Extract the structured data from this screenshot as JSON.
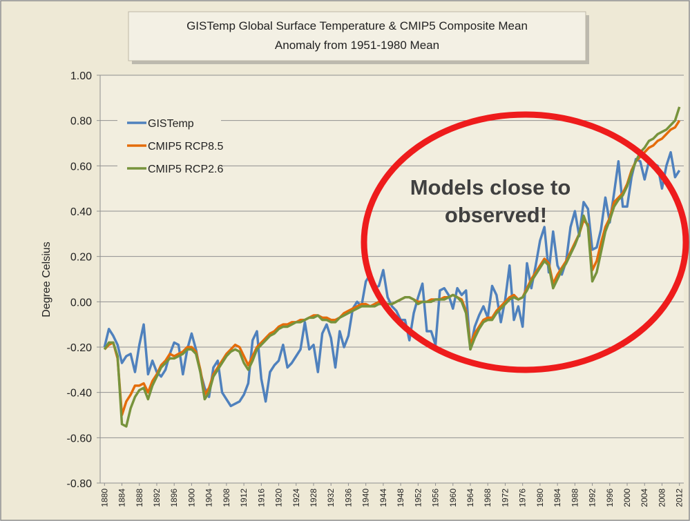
{
  "chart_data": {
    "type": "line",
    "title": [
      "GISTemp Global Surface Temperature & CMIP5 Composite Mean",
      "Anomaly from 1951-1980 Mean"
    ],
    "ylabel": "Degree Celsius",
    "annotation": [
      "Models close to",
      "observed!"
    ],
    "legend": "upper left",
    "grid": true,
    "x": [
      1880,
      1881,
      1882,
      1883,
      1884,
      1885,
      1886,
      1887,
      1888,
      1889,
      1890,
      1891,
      1892,
      1893,
      1894,
      1895,
      1896,
      1897,
      1898,
      1899,
      1900,
      1901,
      1902,
      1903,
      1904,
      1905,
      1906,
      1907,
      1908,
      1909,
      1910,
      1911,
      1912,
      1913,
      1914,
      1915,
      1916,
      1917,
      1918,
      1919,
      1920,
      1921,
      1922,
      1923,
      1924,
      1925,
      1926,
      1927,
      1928,
      1929,
      1930,
      1931,
      1932,
      1933,
      1934,
      1935,
      1936,
      1937,
      1938,
      1939,
      1940,
      1941,
      1942,
      1943,
      1944,
      1945,
      1946,
      1947,
      1948,
      1949,
      1950,
      1951,
      1952,
      1953,
      1954,
      1955,
      1956,
      1957,
      1958,
      1959,
      1960,
      1961,
      1962,
      1963,
      1964,
      1965,
      1966,
      1967,
      1968,
      1969,
      1970,
      1971,
      1972,
      1973,
      1974,
      1975,
      1976,
      1977,
      1978,
      1979,
      1980,
      1981,
      1982,
      1983,
      1984,
      1985,
      1986,
      1987,
      1988,
      1989,
      1990,
      1991,
      1992,
      1993,
      1994,
      1995,
      1996,
      1997,
      1998,
      1999,
      2000,
      2001,
      2002,
      2003,
      2004,
      2005,
      2006,
      2007,
      2008,
      2009,
      2010,
      2011,
      2012
    ],
    "xlim": [
      1879,
      2013
    ],
    "xticks": [
      1880,
      1884,
      1888,
      1892,
      1896,
      1900,
      1904,
      1908,
      1912,
      1916,
      1920,
      1924,
      1928,
      1932,
      1936,
      1940,
      1944,
      1948,
      1952,
      1956,
      1960,
      1964,
      1968,
      1972,
      1976,
      1980,
      1984,
      1988,
      1992,
      1996,
      2000,
      2004,
      2008,
      2012
    ],
    "ylim": [
      -0.8,
      1.0
    ],
    "yticks": [
      {
        "value": 1.0,
        "label": "1.00"
      },
      {
        "value": 0.8,
        "label": "0.80"
      },
      {
        "value": 0.6,
        "label": "0.60"
      },
      {
        "value": 0.4,
        "label": "0.40"
      },
      {
        "value": 0.2,
        "label": "0.20"
      },
      {
        "value": 0,
        "label": "0.00"
      },
      {
        "value": -0.2,
        "label": "-0.20"
      },
      {
        "value": -0.4,
        "label": "-0.40"
      },
      {
        "value": -0.6,
        "label": "-0.60"
      },
      {
        "value": -0.8,
        "label": "-0.80"
      }
    ],
    "series": [
      {
        "name": "GISTemp",
        "color": "#4f81bd",
        "values": [
          -0.2,
          -0.12,
          -0.15,
          -0.19,
          -0.27,
          -0.24,
          -0.23,
          -0.31,
          -0.19,
          -0.1,
          -0.32,
          -0.26,
          -0.31,
          -0.33,
          -0.3,
          -0.23,
          -0.18,
          -0.19,
          -0.32,
          -0.21,
          -0.14,
          -0.21,
          -0.31,
          -0.38,
          -0.42,
          -0.29,
          -0.26,
          -0.4,
          -0.43,
          -0.46,
          -0.45,
          -0.44,
          -0.41,
          -0.36,
          -0.17,
          -0.13,
          -0.34,
          -0.44,
          -0.31,
          -0.28,
          -0.26,
          -0.19,
          -0.29,
          -0.27,
          -0.24,
          -0.21,
          -0.09,
          -0.21,
          -0.19,
          -0.31,
          -0.14,
          -0.1,
          -0.16,
          -0.29,
          -0.13,
          -0.2,
          -0.15,
          -0.03,
          0.0,
          -0.02,
          0.09,
          0.12,
          0.06,
          0.07,
          0.14,
          0.02,
          -0.02,
          -0.04,
          -0.08,
          -0.08,
          -0.17,
          -0.05,
          0.02,
          0.08,
          -0.13,
          -0.13,
          -0.19,
          0.05,
          0.06,
          0.03,
          -0.03,
          0.06,
          0.03,
          0.05,
          -0.21,
          -0.11,
          -0.06,
          -0.02,
          -0.07,
          0.07,
          0.03,
          -0.09,
          0.01,
          0.16,
          -0.08,
          -0.02,
          -0.11,
          0.17,
          0.06,
          0.16,
          0.27,
          0.33,
          0.13,
          0.31,
          0.16,
          0.12,
          0.18,
          0.33,
          0.4,
          0.29,
          0.44,
          0.41,
          0.23,
          0.24,
          0.32,
          0.46,
          0.35,
          0.48,
          0.62,
          0.42,
          0.42,
          0.55,
          0.63,
          0.62,
          0.54,
          0.62,
          0.61,
          0.6,
          0.5,
          0.6,
          0.66,
          0.55,
          0.58
        ]
      },
      {
        "name": "CMIP5 RCP8.5",
        "color": "#e46c0a",
        "values": [
          -0.21,
          -0.19,
          -0.18,
          -0.25,
          -0.5,
          -0.44,
          -0.41,
          -0.37,
          -0.37,
          -0.36,
          -0.4,
          -0.35,
          -0.32,
          -0.28,
          -0.26,
          -0.23,
          -0.24,
          -0.23,
          -0.22,
          -0.2,
          -0.2,
          -0.22,
          -0.3,
          -0.41,
          -0.38,
          -0.32,
          -0.29,
          -0.26,
          -0.23,
          -0.21,
          -0.19,
          -0.2,
          -0.24,
          -0.28,
          -0.24,
          -0.2,
          -0.18,
          -0.16,
          -0.14,
          -0.13,
          -0.11,
          -0.1,
          -0.1,
          -0.09,
          -0.09,
          -0.08,
          -0.08,
          -0.07,
          -0.06,
          -0.06,
          -0.07,
          -0.07,
          -0.08,
          -0.08,
          -0.07,
          -0.05,
          -0.04,
          -0.03,
          -0.02,
          -0.01,
          -0.01,
          -0.02,
          -0.01,
          0.0,
          -0.01,
          -0.01,
          -0.01,
          0.0,
          0.01,
          0.02,
          0.02,
          0.01,
          0.0,
          0.0,
          0.0,
          0.01,
          0.01,
          0.01,
          0.02,
          0.02,
          0.03,
          0.02,
          0.01,
          -0.04,
          -0.19,
          -0.14,
          -0.11,
          -0.08,
          -0.07,
          -0.07,
          -0.04,
          -0.02,
          0.0,
          0.02,
          0.03,
          0.01,
          0.02,
          0.06,
          0.1,
          0.13,
          0.16,
          0.19,
          0.17,
          0.08,
          0.12,
          0.15,
          0.18,
          0.22,
          0.26,
          0.3,
          0.36,
          0.34,
          0.14,
          0.18,
          0.26,
          0.33,
          0.37,
          0.44,
          0.46,
          0.48,
          0.52,
          0.58,
          0.62,
          0.64,
          0.66,
          0.68,
          0.69,
          0.71,
          0.72,
          0.74,
          0.76,
          0.77,
          0.8
        ]
      },
      {
        "name": "CMIP5 RCP2.6",
        "color": "#77933c",
        "values": [
          -0.21,
          -0.18,
          -0.18,
          -0.24,
          -0.54,
          -0.55,
          -0.47,
          -0.42,
          -0.39,
          -0.38,
          -0.43,
          -0.37,
          -0.33,
          -0.29,
          -0.27,
          -0.25,
          -0.25,
          -0.24,
          -0.23,
          -0.21,
          -0.21,
          -0.23,
          -0.31,
          -0.43,
          -0.4,
          -0.33,
          -0.3,
          -0.27,
          -0.24,
          -0.22,
          -0.21,
          -0.22,
          -0.27,
          -0.3,
          -0.26,
          -0.21,
          -0.19,
          -0.17,
          -0.15,
          -0.14,
          -0.12,
          -0.11,
          -0.11,
          -0.1,
          -0.09,
          -0.09,
          -0.08,
          -0.07,
          -0.07,
          -0.06,
          -0.08,
          -0.08,
          -0.09,
          -0.09,
          -0.07,
          -0.06,
          -0.05,
          -0.04,
          -0.03,
          -0.02,
          -0.02,
          -0.02,
          -0.02,
          -0.01,
          -0.01,
          -0.01,
          -0.01,
          0.0,
          0.01,
          0.02,
          0.02,
          0.01,
          -0.01,
          0.0,
          0.0,
          0.0,
          0.01,
          0.01,
          0.01,
          0.02,
          0.03,
          0.02,
          0.0,
          -0.05,
          -0.21,
          -0.16,
          -0.12,
          -0.09,
          -0.08,
          -0.08,
          -0.05,
          -0.03,
          -0.01,
          0.01,
          0.02,
          0.01,
          0.02,
          0.05,
          0.09,
          0.12,
          0.15,
          0.18,
          0.16,
          0.06,
          0.1,
          0.14,
          0.17,
          0.21,
          0.25,
          0.3,
          0.38,
          0.33,
          0.09,
          0.13,
          0.22,
          0.31,
          0.36,
          0.42,
          0.45,
          0.47,
          0.51,
          0.57,
          0.62,
          0.66,
          0.68,
          0.71,
          0.72,
          0.74,
          0.75,
          0.76,
          0.78,
          0.8,
          0.86
        ]
      }
    ]
  }
}
